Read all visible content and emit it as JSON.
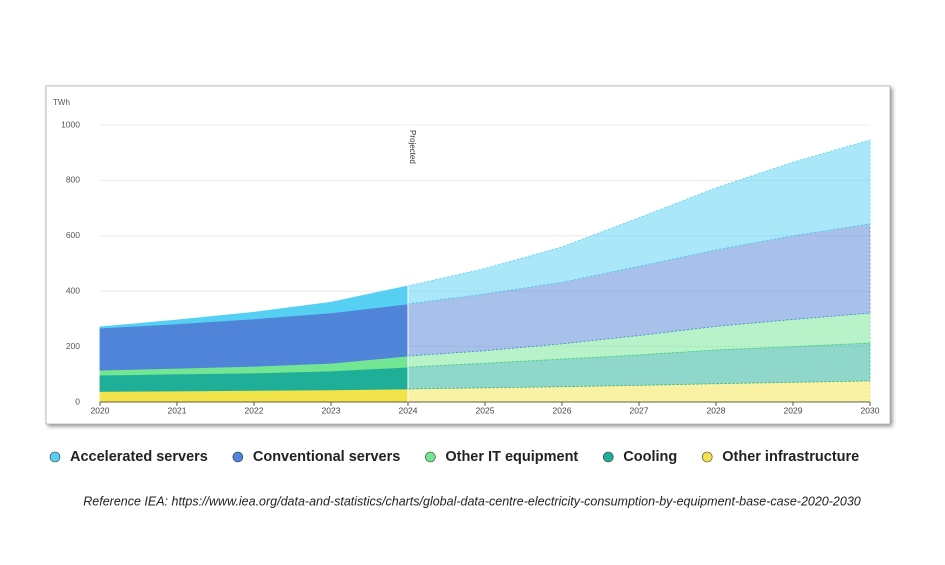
{
  "chart_data": {
    "type": "stacked-area",
    "y_unit": "TWh",
    "categories": [
      "2020",
      "2021",
      "2022",
      "2023",
      "2024",
      "2025",
      "2026",
      "2027",
      "2028",
      "2029",
      "2030"
    ],
    "annotation": {
      "text": "Projected",
      "x": "2024"
    },
    "series": [
      {
        "name": "Other infrastructure",
        "color": "#f3e34a",
        "values": [
          38,
          40,
          42,
          44,
          47,
          51,
          55,
          60,
          66,
          71,
          76
        ]
      },
      {
        "name": "Cooling",
        "color": "#1fae98",
        "values": [
          59,
          61,
          63,
          68,
          79,
          89,
          100,
          110,
          122,
          129,
          137
        ]
      },
      {
        "name": "Other IT equipment",
        "color": "#72e692",
        "values": [
          18,
          21,
          24,
          28,
          40,
          45,
          55,
          70,
          85,
          98,
          108
        ]
      },
      {
        "name": "Conventional servers",
        "color": "#4f84d8",
        "values": [
          152,
          160,
          171,
          182,
          188,
          205,
          222,
          250,
          276,
          302,
          322
        ]
      },
      {
        "name": "Accelerated servers",
        "color": "#55d0f3",
        "values": [
          4,
          14,
          24,
          38,
          65,
          92,
          128,
          175,
          224,
          266,
          303
        ]
      }
    ],
    "ylim": [
      0,
      1000
    ],
    "yticks": [
      0,
      200,
      400,
      600,
      800,
      1000
    ],
    "grid": true,
    "reference": "Reference IEA: https://www.iea.org/data-and-statistics/charts/global-data-centre-electricity-consumption-by-equipment-base-case-2020-2030"
  }
}
